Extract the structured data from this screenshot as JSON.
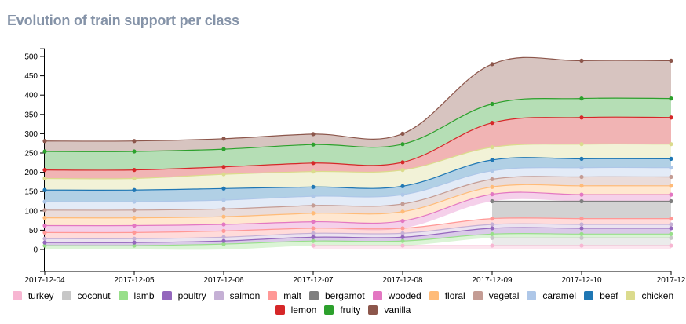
{
  "chart_data": {
    "type": "area",
    "title": "Evolution of train support per class",
    "xlabel": "",
    "ylabel": "",
    "ylim": [
      0,
      520
    ],
    "yticks": [
      0,
      50,
      100,
      150,
      200,
      250,
      300,
      350,
      400,
      450,
      500
    ],
    "x": [
      "2017-12-04",
      "2017-12-05",
      "2017-12-06",
      "2017-12-07",
      "2017-12-08",
      "2017-12-09",
      "2017-12-10",
      "2017-12"
    ],
    "legend_position": "bottom",
    "series": [
      {
        "name": "turkey",
        "color": "#f7b6d2",
        "values": [
          null,
          null,
          null,
          10,
          10,
          10,
          10,
          10
        ]
      },
      {
        "name": "coconut",
        "color": "#c7c7c7",
        "values": [
          null,
          null,
          null,
          null,
          null,
          30,
          30,
          30
        ]
      },
      {
        "name": "lamb",
        "color": "#98df8a",
        "values": [
          10,
          10,
          14,
          22,
          22,
          40,
          40,
          40
        ]
      },
      {
        "name": "poultry",
        "color": "#9467bd",
        "values": [
          18,
          18,
          22,
          32,
          32,
          55,
          55,
          55
        ]
      },
      {
        "name": "salmon",
        "color": "#c5b0d5",
        "values": [
          28,
          28,
          32,
          42,
          42,
          65,
          65,
          65
        ]
      },
      {
        "name": "malt",
        "color": "#ff9896",
        "values": [
          44,
          44,
          48,
          55,
          55,
          80,
          80,
          80
        ]
      },
      {
        "name": "bergamot",
        "color": "#7f7f7f",
        "values": [
          null,
          null,
          null,
          null,
          null,
          125,
          125,
          125
        ]
      },
      {
        "name": "wooded",
        "color": "#e377c2",
        "values": [
          62,
          62,
          65,
          72,
          74,
          143,
          142,
          142
        ]
      },
      {
        "name": "floral",
        "color": "#ffbb78",
        "values": [
          82,
          82,
          85,
          94,
          98,
          162,
          165,
          165
        ]
      },
      {
        "name": "vegetal",
        "color": "#c49c94",
        "values": [
          102,
          102,
          105,
          114,
          118,
          182,
          188,
          188
        ]
      },
      {
        "name": "caramel",
        "color": "#aec7e8",
        "values": [
          124,
          124,
          128,
          138,
          142,
          204,
          212,
          212
        ]
      },
      {
        "name": "beef",
        "color": "#1f77b4",
        "values": [
          154,
          154,
          158,
          162,
          164,
          232,
          235,
          235
        ]
      },
      {
        "name": "chicken",
        "color": "#dbdb8d",
        "values": [
          184,
          184,
          195,
          202,
          206,
          265,
          273,
          273
        ]
      },
      {
        "name": "lemon",
        "color": "#d62728",
        "values": [
          206,
          206,
          214,
          224,
          226,
          328,
          342,
          342
        ]
      },
      {
        "name": "fruity",
        "color": "#2ca02c",
        "values": [
          254,
          254,
          260,
          272,
          273,
          377,
          391,
          391
        ]
      },
      {
        "name": "vanilla",
        "color": "#8c564b",
        "values": [
          281,
          281,
          287,
          299,
          300,
          480,
          489,
          489
        ]
      }
    ]
  }
}
